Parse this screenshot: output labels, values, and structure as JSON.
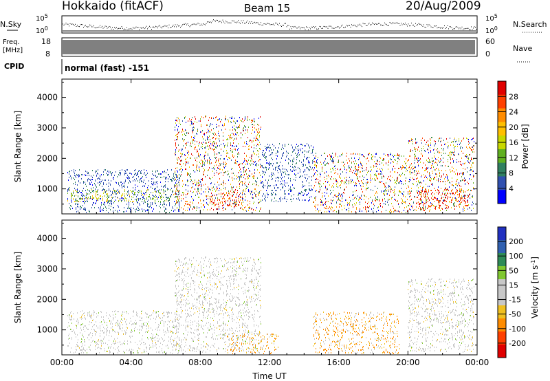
{
  "header": {
    "station": "Hokkaido (fitACF)",
    "beam": "Beam 15",
    "date": "20/Aug/2009"
  },
  "summary": {
    "nsky_label": "N.Sky",
    "nsearch_label": "N.Search",
    "freq_label": "Freq.",
    "freq_unit": "[MHz]",
    "nave_label": "Nave",
    "cpid_label": "CPID",
    "cpid_text": "normal (fast) -151",
    "noise_ticks": [
      "10^5",
      "10^0"
    ],
    "noise_ticks_right": [
      "10^5",
      "10^0"
    ],
    "freq_ticks": [
      "18",
      "8"
    ],
    "nave_ticks": [
      "60",
      "0"
    ]
  },
  "power_colorbar": {
    "label": "Power [dB]",
    "ticks": [
      "28",
      "24",
      "20",
      "16",
      "12",
      "8",
      "4"
    ],
    "colors": [
      "#e00000",
      "#ff4000",
      "#ff8c00",
      "#ffc000",
      "#c8d800",
      "#60b020",
      "#308060",
      "#3050b0",
      "#0000ff"
    ]
  },
  "velocity_colorbar": {
    "label": "Velocity [m s^-1]",
    "ticks": [
      "200",
      "100",
      "50",
      "15",
      "-15",
      "-50",
      "-100",
      "-200"
    ],
    "colors": [
      "#2030c0",
      "#3060b0",
      "#2e8b57",
      "#80c830",
      "#c8c8c8",
      "#c8c8c8",
      "#f0c020",
      "#ff8c00",
      "#ff4000",
      "#e00000"
    ]
  },
  "chart_data": [
    {
      "type": "heatmap",
      "panel": "power",
      "ylabel": "Slant Range [km]",
      "xlabel": "",
      "ylim": [
        180,
        4600
      ],
      "yticks": [
        1000,
        2000,
        3000,
        4000
      ],
      "xlim": [
        0,
        24
      ],
      "xticks": [
        "00:00",
        "04:00",
        "08:00",
        "12:00",
        "16:00",
        "20:00",
        "00:00"
      ],
      "regions": [
        {
          "t0": 0.3,
          "t1": 6.8,
          "r0": 250,
          "r1": 1650,
          "level": "low"
        },
        {
          "t0": 0.3,
          "t1": 6.8,
          "r0": 600,
          "r1": 1000,
          "level": "mid"
        },
        {
          "t0": 6.5,
          "t1": 11.5,
          "r0": 300,
          "r1": 3400,
          "level": "mixed"
        },
        {
          "t0": 8.5,
          "t1": 10.5,
          "r0": 350,
          "r1": 900,
          "level": "high"
        },
        {
          "t0": 11.5,
          "t1": 14.5,
          "r0": 600,
          "r1": 2500,
          "level": "low"
        },
        {
          "t0": 14.5,
          "t1": 20.0,
          "r0": 250,
          "r1": 2200,
          "level": "mixed"
        },
        {
          "t0": 20.0,
          "t1": 23.8,
          "r0": 300,
          "r1": 2700,
          "level": "mixed"
        },
        {
          "t0": 20.5,
          "t1": 23.5,
          "r0": 350,
          "r1": 1000,
          "level": "high"
        }
      ]
    },
    {
      "type": "heatmap",
      "panel": "velocity",
      "ylabel": "Slant Range [km]",
      "xlabel": "Time UT",
      "ylim": [
        180,
        4600
      ],
      "yticks": [
        1000,
        2000,
        3000,
        4000
      ],
      "xlim": [
        0,
        24
      ],
      "xticks": [
        "00:00",
        "04:00",
        "08:00",
        "12:00",
        "16:00",
        "20:00",
        "00:00"
      ],
      "regions": [
        {
          "t0": 0.3,
          "t1": 6.8,
          "r0": 250,
          "r1": 1650,
          "level": "ground"
        },
        {
          "t0": 6.5,
          "t1": 11.5,
          "r0": 300,
          "r1": 3400,
          "level": "ground"
        },
        {
          "t0": 9.5,
          "t1": 12.5,
          "r0": 250,
          "r1": 900,
          "level": "negative"
        },
        {
          "t0": 14.5,
          "t1": 19.5,
          "r0": 250,
          "r1": 1600,
          "level": "negative"
        },
        {
          "t0": 20.0,
          "t1": 23.8,
          "r0": 300,
          "r1": 2700,
          "level": "ground"
        }
      ]
    }
  ]
}
